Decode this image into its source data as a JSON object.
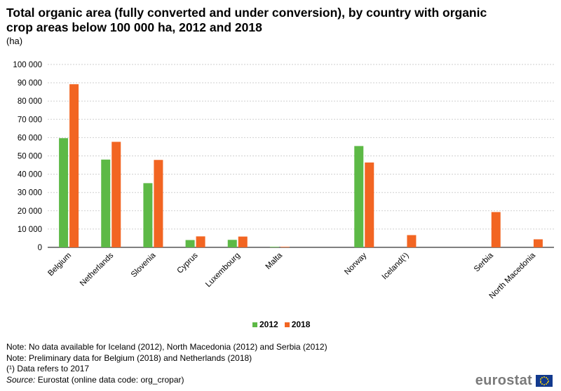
{
  "chart_data": {
    "type": "bar",
    "title": "Total organic area (fully converted and under conversion), by country with organic crop areas below 100 000 ha, 2012 and 2018",
    "subtitle": "(ha)",
    "categories": [
      "Belgium",
      "Netherlands",
      "Slovenia",
      "Cyprus",
      "Luxembourg",
      "Malta",
      "",
      "Norway",
      "Iceland(¹)",
      "",
      "Serbia",
      "North Macedonia"
    ],
    "series": [
      {
        "name": "2012",
        "color": "#5db946",
        "values": [
          59700,
          48000,
          35100,
          4000,
          4100,
          300,
          null,
          55400,
          null,
          null,
          null,
          null
        ]
      },
      {
        "name": "2018",
        "color": "#f26522",
        "values": [
          89200,
          57700,
          47800,
          6000,
          5900,
          300,
          null,
          46400,
          6700,
          null,
          19300,
          4400
        ]
      }
    ],
    "yticks": [
      "0",
      "10 000",
      "20 000",
      "30 000",
      "40 000",
      "50 000",
      "60 000",
      "70 000",
      "80 000",
      "90 000",
      "100 000"
    ],
    "ylim": [
      0,
      100000
    ],
    "grid": true,
    "legend_position": "bottom-center"
  },
  "notes": [
    "Note: No data available for Iceland (2012), North Macedonia (2012) and Serbia (2012)",
    "Note: Preliminary data for Belgium (2018) and Netherlands (2018)",
    "(¹) Data refers to 2017"
  ],
  "source": {
    "label": "Source:",
    "text": " Eurostat (online data code: org_cropar)"
  },
  "logo": {
    "text": "eurostat",
    "icon": "eu-flag-icon"
  }
}
